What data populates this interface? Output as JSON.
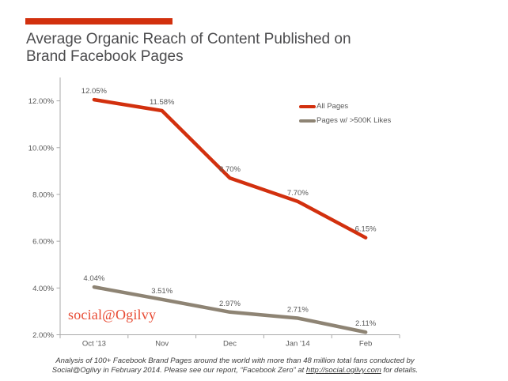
{
  "page": {
    "background": "#ffffff"
  },
  "header": {
    "accent_bar_color": "#d2300e",
    "title_line1": "Average Organic Reach of Content Published on",
    "title_line2": "Brand Facebook Pages"
  },
  "branding": {
    "logo_text": "social@Ogilvy",
    "logo_color": "#e84a33"
  },
  "footnote": {
    "line1": "Analysis of 100+ Facebook Brand Pages around the world with more than 48 million total fans conducted by",
    "line2_before_link": "Social@Ogilvy in February 2014. Please see our report, “Facebook Zero” at ",
    "link_text": "http://social.ogilvy.com",
    "line2_after_link": " for details."
  },
  "chart_data": {
    "type": "line",
    "title": "Average Organic Reach of Content Published on Brand Facebook Pages",
    "categories": [
      "Oct ’13",
      "Nov",
      "Dec",
      "Jan ’14",
      "Feb"
    ],
    "series": [
      {
        "name": "All Pages",
        "color": "#d2300e",
        "values": [
          12.05,
          11.58,
          8.7,
          7.7,
          6.15
        ],
        "point_labels": [
          "12.05%",
          "11.58%",
          "8.70%",
          "7.70%",
          "6.15%"
        ]
      },
      {
        "name": "Pages w/ >500K Likes",
        "color": "#8e8474",
        "values": [
          4.04,
          3.51,
          2.97,
          2.71,
          2.11
        ],
        "point_labels": [
          "4.04%",
          "3.51%",
          "2.97%",
          "2.71%",
          "2.11%"
        ]
      }
    ],
    "y_axis": {
      "min": 2,
      "max": 13,
      "ticks": [
        {
          "value": 2,
          "label": "2.00%"
        },
        {
          "value": 4,
          "label": "4.00%"
        },
        {
          "value": 6,
          "label": "6.00%"
        },
        {
          "value": 8,
          "label": "8.00%"
        },
        {
          "value": 10,
          "label": "10.00%"
        },
        {
          "value": 12,
          "label": "12.00%"
        }
      ]
    },
    "grid": false,
    "legend_position": "top-right",
    "axis_color": "#a9a9a9",
    "label_color": "#595959"
  }
}
